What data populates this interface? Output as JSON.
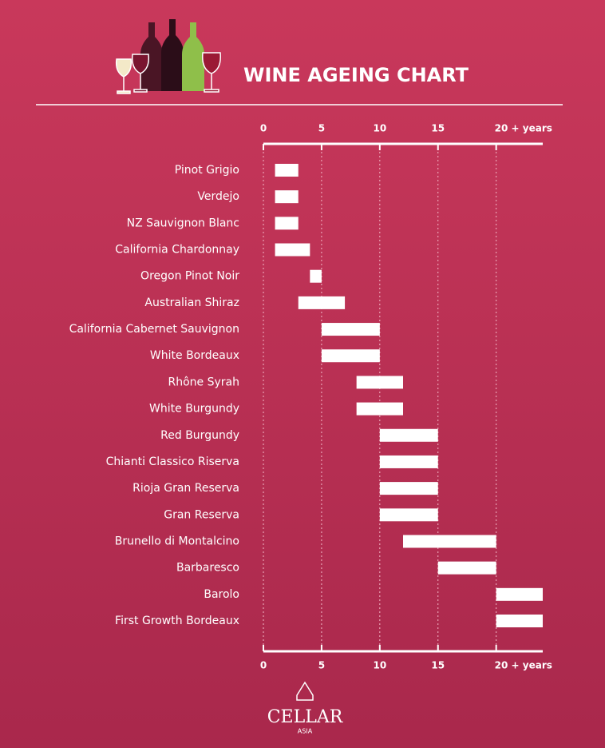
{
  "chart_data": {
    "type": "range-bar",
    "title": "WINE AGEING CHART",
    "categories": [
      "Pinot Grigio",
      "Verdejo",
      "NZ Sauvignon Blanc",
      "California Chardonnay",
      "Oregon Pinot Noir",
      "Australian Shiraz",
      "California Cabernet Sauvignon",
      "White Bordeaux",
      "Rhône Syrah",
      "White Burgundy",
      "Red Burgundy",
      "Chianti Classico Riserva",
      "Rioja Gran Reserva",
      "Gran Reserva",
      "Brunello di Montalcino",
      "Barbaresco",
      "Barolo",
      "First Growth Bordeaux"
    ],
    "start": [
      1,
      1,
      1,
      1,
      4,
      3,
      5,
      5,
      8,
      8,
      10,
      10,
      10,
      10,
      12,
      15,
      20,
      20
    ],
    "end": [
      3,
      3,
      3,
      4,
      5,
      7,
      10,
      10,
      12,
      12,
      15,
      15,
      15,
      15,
      20,
      20,
      24,
      24
    ],
    "color": "#ffffff",
    "xlim": [
      0,
      24
    ],
    "xticks": [
      0,
      5,
      10,
      15,
      {
        "value": 20,
        "label": "20 + years"
      }
    ],
    "grid": true,
    "brand": "CELLAR",
    "brand_sub": "ASIA"
  }
}
